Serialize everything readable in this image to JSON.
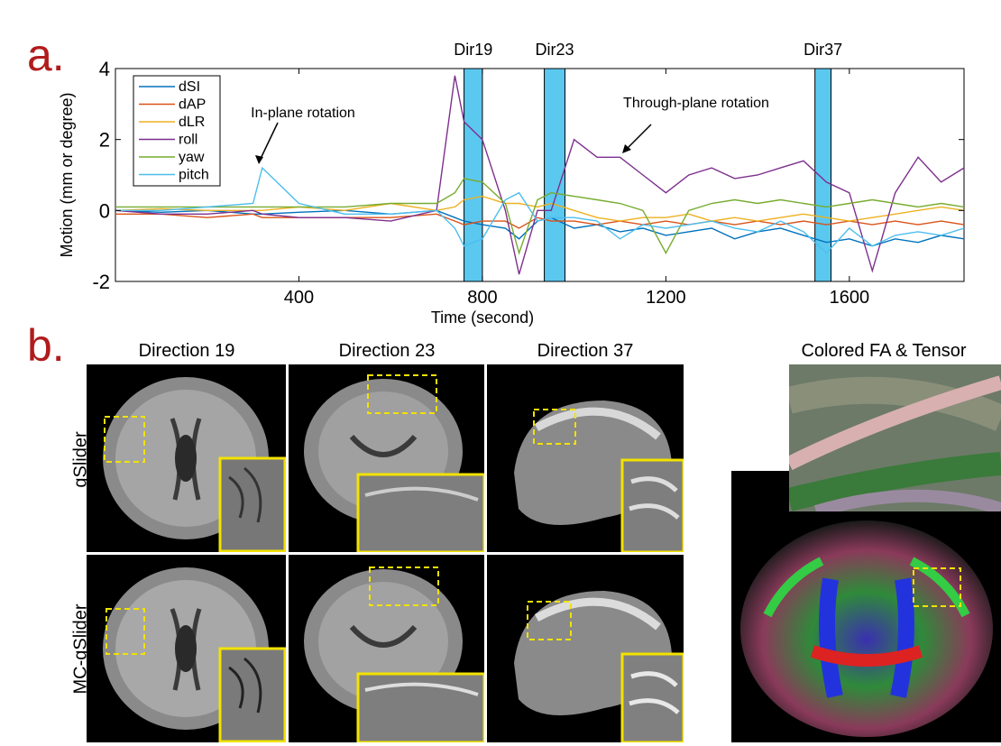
{
  "panel_a": {
    "letter": "a.",
    "annotations": {
      "in_plane": "In-plane rotation",
      "through_plane": "Through-plane rotation"
    },
    "highlights": [
      {
        "label": "Dir19",
        "x_start": 760,
        "x_end": 800
      },
      {
        "label": "Dir23",
        "x_start": 935,
        "x_end": 980
      },
      {
        "label": "Dir37",
        "x_start": 1525,
        "x_end": 1560
      }
    ]
  },
  "chart_data": {
    "type": "line",
    "xlabel": "Time (second)",
    "ylabel": "Motion (mm or degree)",
    "xlim": [
      0,
      1850
    ],
    "ylim": [
      -2,
      4
    ],
    "xticks": [
      400,
      800,
      1200,
      1600
    ],
    "yticks": [
      -2,
      0,
      2,
      4
    ],
    "legend_position": "top-left",
    "x": [
      0,
      100,
      200,
      300,
      320,
      400,
      500,
      600,
      700,
      740,
      760,
      800,
      850,
      880,
      920,
      950,
      1000,
      1050,
      1100,
      1150,
      1200,
      1250,
      1300,
      1350,
      1400,
      1450,
      1500,
      1550,
      1600,
      1650,
      1700,
      1750,
      1800,
      1850
    ],
    "series": [
      {
        "name": "dSI",
        "color": "#0072bd",
        "values": [
          0,
          -0.05,
          0,
          -0.1,
          -0.1,
          -0.05,
          0,
          -0.1,
          0,
          -0.2,
          -0.3,
          -0.4,
          -0.5,
          -0.8,
          -0.3,
          -0.2,
          -0.5,
          -0.4,
          -0.6,
          -0.5,
          -0.7,
          -0.6,
          -0.5,
          -0.8,
          -0.6,
          -0.5,
          -0.7,
          -0.9,
          -0.8,
          -1.0,
          -0.8,
          -0.9,
          -0.7,
          -0.8
        ]
      },
      {
        "name": "dAP",
        "color": "#d95319",
        "values": [
          -0.1,
          -0.1,
          -0.2,
          -0.1,
          -0.2,
          -0.2,
          -0.2,
          -0.2,
          -0.1,
          -0.3,
          -0.4,
          -0.3,
          -0.3,
          -0.5,
          -0.2,
          -0.3,
          -0.3,
          -0.4,
          -0.3,
          -0.4,
          -0.3,
          -0.4,
          -0.3,
          -0.4,
          -0.3,
          -0.4,
          -0.3,
          -0.4,
          -0.3,
          -0.4,
          -0.3,
          -0.4,
          -0.3,
          -0.4
        ]
      },
      {
        "name": "dLR",
        "color": "#edb120",
        "values": [
          0,
          0.05,
          0,
          0,
          0,
          0.1,
          0,
          0.2,
          0,
          0.1,
          0.3,
          0.4,
          0.2,
          0.2,
          0.1,
          0.2,
          0,
          -0.2,
          -0.3,
          -0.2,
          -0.2,
          -0.1,
          -0.3,
          -0.2,
          -0.3,
          -0.2,
          -0.1,
          -0.2,
          -0.3,
          -0.2,
          -0.1,
          0,
          0.1,
          0
        ]
      },
      {
        "name": "roll",
        "color": "#7e2f8e",
        "values": [
          0,
          -0.1,
          -0.1,
          0,
          -0.1,
          -0.2,
          -0.2,
          -0.3,
          0,
          3.8,
          2.5,
          2.0,
          0,
          -1.8,
          0,
          0,
          2.0,
          1.5,
          1.5,
          1.0,
          0.5,
          1.0,
          1.2,
          0.9,
          1.0,
          1.2,
          1.4,
          0.8,
          0.5,
          -1.7,
          0.5,
          1.5,
          0.8,
          1.2
        ]
      },
      {
        "name": "yaw",
        "color": "#77ac30",
        "values": [
          0.1,
          0.1,
          0.1,
          0.1,
          0.1,
          0.1,
          0.1,
          0.2,
          0.2,
          0.5,
          0.9,
          0.8,
          0.2,
          -1.2,
          0.3,
          0.5,
          0.4,
          0.3,
          0.2,
          0,
          -1.2,
          0,
          0.2,
          0.3,
          0.2,
          0.3,
          0.2,
          0.1,
          0.2,
          0.3,
          0.2,
          0.1,
          0.2,
          0.1
        ]
      },
      {
        "name": "pitch",
        "color": "#4dbeee",
        "values": [
          0,
          0,
          0.1,
          0.2,
          1.2,
          0.2,
          -0.1,
          -0.1,
          0,
          -0.5,
          -1.0,
          -0.8,
          0.3,
          0.5,
          -0.3,
          -0.2,
          -0.2,
          -0.3,
          -0.8,
          -0.4,
          -0.5,
          -0.4,
          -0.3,
          -0.5,
          -0.6,
          -0.3,
          -0.6,
          -1.2,
          -0.5,
          -1.0,
          -0.7,
          -0.6,
          -0.7,
          -0.5
        ]
      }
    ]
  },
  "panel_b": {
    "letter": "b.",
    "columns": [
      "Direction 19",
      "Direction 23",
      "Direction 37",
      "Colored FA & Tensor"
    ],
    "rows": [
      "gSlider",
      "MC-gSlider"
    ]
  },
  "colors": {
    "panel_letter": "#b01c1c",
    "highlight_fill": "#5bc8f0",
    "inset_border": "#f2e200",
    "roi_dash": "#f2e200"
  }
}
